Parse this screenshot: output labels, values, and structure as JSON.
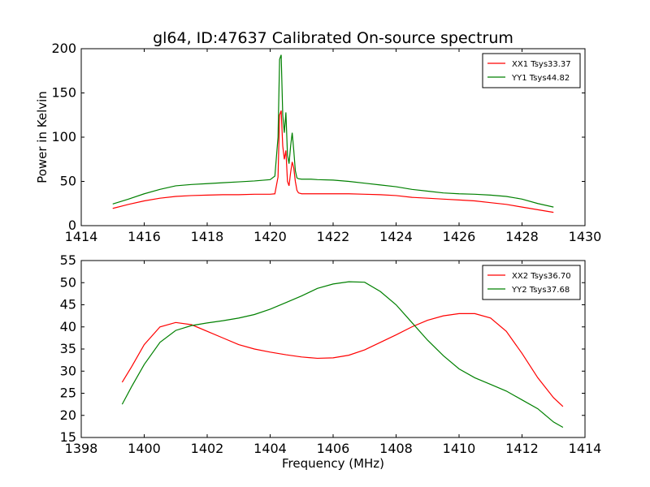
{
  "chart_data": [
    {
      "type": "line",
      "title": "gl64, ID:47637 Calibrated On-source spectrum",
      "xlabel": "",
      "ylabel": "Power in Kelvin",
      "xlim": [
        1414,
        1430
      ],
      "ylim": [
        0,
        200
      ],
      "xticks": [
        1414,
        1416,
        1418,
        1420,
        1422,
        1424,
        1426,
        1428,
        1430
      ],
      "yticks": [
        0,
        50,
        100,
        150,
        200
      ],
      "legend_position": "top-right",
      "series": [
        {
          "name": "XX1 Tsys33.37",
          "color": "#ff0000",
          "x": [
            1415,
            1415.5,
            1416,
            1416.5,
            1417,
            1417.5,
            1418,
            1418.5,
            1419,
            1419.5,
            1420,
            1420.15,
            1420.25,
            1420.3,
            1420.35,
            1420.4,
            1420.45,
            1420.5,
            1420.55,
            1420.6,
            1420.65,
            1420.7,
            1420.75,
            1420.8,
            1420.85,
            1420.9,
            1421,
            1421.3,
            1421.5,
            1422,
            1422.5,
            1423,
            1423.5,
            1424,
            1424.5,
            1425,
            1425.5,
            1426,
            1426.5,
            1427,
            1427.5,
            1428,
            1428.5,
            1429
          ],
          "y": [
            19.5,
            24,
            28,
            31,
            33,
            34,
            34.5,
            35,
            35,
            35.5,
            35.5,
            36,
            55,
            125,
            130,
            90,
            75,
            85,
            50,
            45,
            60,
            72,
            65,
            50,
            40,
            37,
            36,
            36,
            36,
            36,
            36,
            35.5,
            35,
            34,
            32,
            31,
            30,
            29,
            28,
            26,
            24,
            21,
            18,
            15
          ]
        },
        {
          "name": "YY1 Tsys44.82",
          "color": "#008000",
          "x": [
            1415,
            1415.5,
            1416,
            1416.5,
            1417,
            1417.5,
            1418,
            1418.5,
            1419,
            1419.5,
            1420,
            1420.15,
            1420.25,
            1420.3,
            1420.35,
            1420.4,
            1420.45,
            1420.5,
            1420.55,
            1420.6,
            1420.65,
            1420.7,
            1420.75,
            1420.8,
            1420.85,
            1420.9,
            1421,
            1421.3,
            1421.5,
            1422,
            1422.5,
            1423,
            1423.5,
            1424,
            1424.5,
            1425,
            1425.5,
            1426,
            1426.5,
            1427,
            1427.5,
            1428,
            1428.5,
            1429
          ],
          "y": [
            24.5,
            30,
            36,
            41,
            45,
            46.5,
            47.5,
            48.5,
            49.5,
            50.5,
            52,
            56,
            100,
            188,
            193,
            125,
            105,
            128,
            80,
            70,
            90,
            105,
            85,
            62,
            54,
            53,
            52.5,
            52.5,
            52,
            51.5,
            50,
            48,
            46,
            44,
            41,
            39,
            37,
            36,
            35.5,
            34.5,
            33,
            30,
            25,
            21
          ]
        }
      ]
    },
    {
      "type": "line",
      "title": "",
      "xlabel": "Frequency (MHz)",
      "ylabel": "",
      "xlim": [
        1398,
        1414
      ],
      "ylim": [
        15,
        55
      ],
      "xticks": [
        1398,
        1400,
        1402,
        1404,
        1406,
        1408,
        1410,
        1412,
        1414
      ],
      "yticks": [
        15,
        20,
        25,
        30,
        35,
        40,
        45,
        50,
        55
      ],
      "legend_position": "top-right",
      "series": [
        {
          "name": "XX2 Tsys36.70",
          "color": "#ff0000",
          "x": [
            1399.3,
            1399.6,
            1400,
            1400.5,
            1401,
            1401.5,
            1402,
            1402.5,
            1403,
            1403.5,
            1404,
            1404.5,
            1405,
            1405.5,
            1406,
            1406.5,
            1407,
            1407.5,
            1408,
            1408.5,
            1409,
            1409.5,
            1410,
            1410.5,
            1411,
            1411.5,
            1412,
            1412.5,
            1413,
            1413.3
          ],
          "y": [
            27.5,
            31,
            36,
            40,
            41,
            40.5,
            39,
            37.5,
            36,
            35,
            34.3,
            33.7,
            33.2,
            32.9,
            33,
            33.6,
            34.8,
            36.5,
            38.2,
            40,
            41.5,
            42.5,
            43,
            43,
            42,
            39,
            34,
            28.5,
            24,
            22
          ]
        },
        {
          "name": "YY2 Tsys37.68",
          "color": "#008000",
          "x": [
            1399.3,
            1399.6,
            1400,
            1400.5,
            1401,
            1401.5,
            1402,
            1402.5,
            1403,
            1403.5,
            1404,
            1404.5,
            1405,
            1405.5,
            1406,
            1406.5,
            1407,
            1407.5,
            1408,
            1408.5,
            1409,
            1409.5,
            1410,
            1410.5,
            1411,
            1411.5,
            1412,
            1412.5,
            1413,
            1413.3
          ],
          "y": [
            22.5,
            26.5,
            31.5,
            36.5,
            39.2,
            40.3,
            40.9,
            41.4,
            42,
            42.8,
            44,
            45.5,
            47,
            48.7,
            49.7,
            50.2,
            50.1,
            48,
            45,
            41,
            37,
            33.5,
            30.5,
            28.5,
            27,
            25.5,
            23.5,
            21.5,
            18.5,
            17.3
          ]
        }
      ]
    }
  ]
}
